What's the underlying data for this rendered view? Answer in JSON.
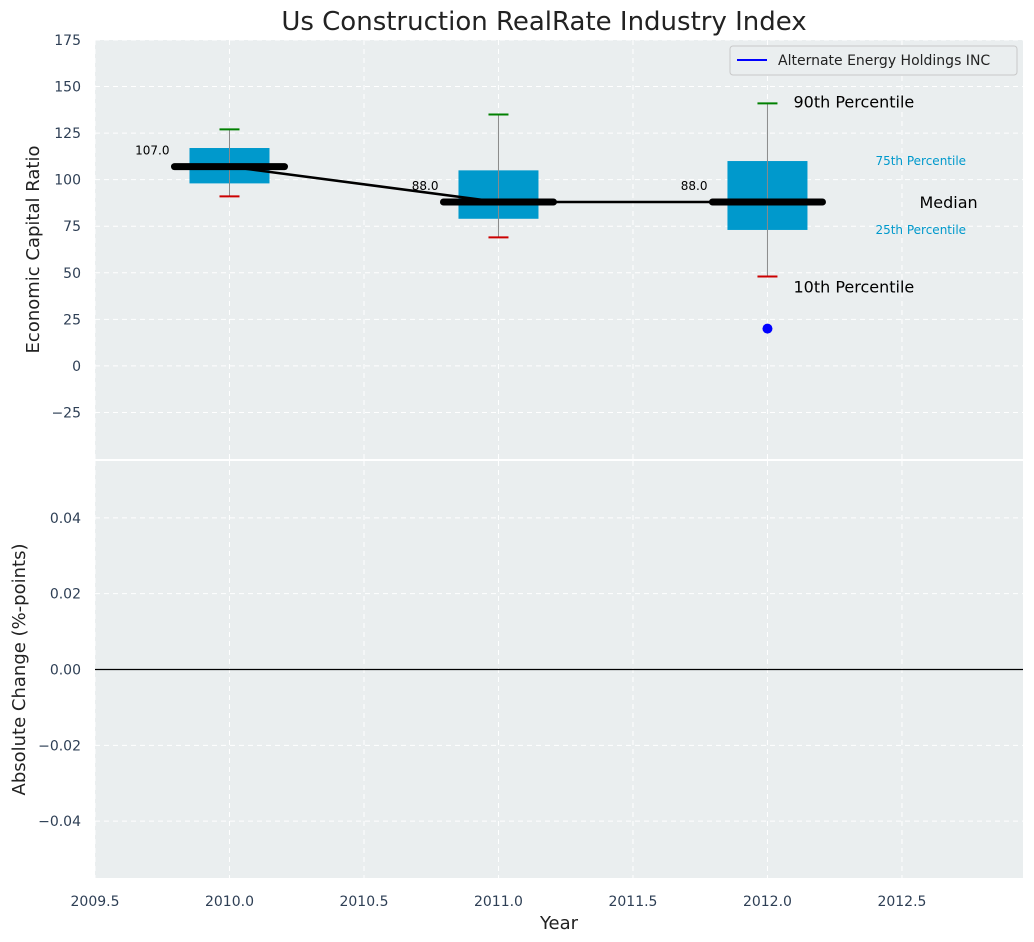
{
  "chart_data": {
    "type": "box",
    "title": "Us Construction RealRate Industry Index",
    "colors": {
      "background": "#eaeeef",
      "box": "#0099cc",
      "p90_cap": "#008000",
      "p10_cap": "#cc0000",
      "whisker": "#8a8a8a",
      "median_line": "#000000",
      "company": "#0000ff",
      "annotation_cyan": "#0099cc"
    },
    "grid": true,
    "legend": {
      "position": "top-right",
      "entries": [
        "Alternate Energy Holdings INC"
      ]
    },
    "top": {
      "ylabel": "Economic Capital Ratio",
      "xlim": [
        2009.5,
        2012.95
      ],
      "ylim": [
        -50,
        175
      ],
      "yticks": [
        -25,
        0,
        25,
        50,
        75,
        100,
        125,
        150,
        175
      ],
      "years": [
        2010.0,
        2011.0,
        2012.0
      ],
      "p10": [
        91,
        69,
        48
      ],
      "p25": [
        98,
        79,
        73
      ],
      "median": [
        107,
        88,
        88
      ],
      "p75": [
        117,
        105,
        110
      ],
      "p90": [
        127,
        135,
        141
      ],
      "median_labels": [
        "107.0",
        "88.0",
        "88.0"
      ],
      "company": {
        "name": "Alternate Energy Holdings INC",
        "x": [
          2012.0
        ],
        "y": [
          20
        ]
      },
      "annotations": {
        "p90": "90th Percentile",
        "p75": "75th Percentile",
        "median": "Median",
        "p25": "25th Percentile",
        "p10": "10th Percentile"
      }
    },
    "bottom": {
      "ylabel": "Absolute Change (%-points)",
      "xlabel": "Year",
      "xlim": [
        2009.5,
        2012.95
      ],
      "ylim": [
        -0.055,
        0.055
      ],
      "yticks": [
        -0.04,
        -0.02,
        0.0,
        0.02,
        0.04
      ],
      "ytick_labels": [
        "−0.04",
        "−0.02",
        "0.00",
        "0.02",
        "0.04"
      ],
      "xticks": [
        2009.5,
        2010.0,
        2010.5,
        2011.0,
        2011.5,
        2012.0,
        2012.5
      ],
      "xtick_labels": [
        "2009.5",
        "2010.0",
        "2010.5",
        "2011.0",
        "2011.5",
        "2012.0",
        "2012.5"
      ],
      "zero_line": 0.0
    }
  }
}
